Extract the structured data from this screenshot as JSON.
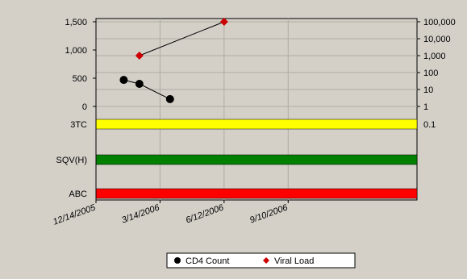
{
  "chart_data": {
    "type": "line",
    "title": "",
    "x_axis": {
      "type": "date",
      "min": "2005-12-14",
      "max": "2007-03-10",
      "tick_values": [
        "2005-12-14",
        "2006-03-14",
        "2006-06-12",
        "2006-09-10"
      ],
      "tick_labels": [
        "12/14/2005",
        "3/14/2006",
        "6/12/2006",
        "9/10/2006"
      ]
    },
    "left_axis": {
      "min": 0,
      "max": 1500,
      "ticks": [
        1500,
        1000,
        500,
        0
      ],
      "tick_labels": [
        "1,500",
        "1,000",
        "500",
        "0"
      ]
    },
    "right_axis": {
      "scale": "log",
      "min": 1,
      "max": 100000,
      "ticks": [
        100000,
        10000,
        1000,
        100,
        10,
        1
      ],
      "tick_labels": [
        "100,000",
        "10,000",
        "1,000",
        "100",
        "10",
        "1"
      ],
      "extra_label": "0.1"
    },
    "series": [
      {
        "name": "CD4 Count",
        "axis": "left",
        "color": "#000000",
        "marker": "circle",
        "points": [
          {
            "x": "2006-01-22",
            "y": 470
          },
          {
            "x": "2006-02-13",
            "y": 400
          },
          {
            "x": "2006-03-28",
            "y": 130
          }
        ]
      },
      {
        "name": "Viral Load",
        "axis": "right",
        "color": "#cc0000",
        "marker": "diamond",
        "points": [
          {
            "x": "2006-02-13",
            "y": 1000
          },
          {
            "x": "2006-06-12",
            "y": 100000
          }
        ]
      }
    ],
    "drug_bands": [
      {
        "label": "3TC",
        "color": "#ffff00"
      },
      {
        "label": "SQV(H)",
        "color": "#008000"
      },
      {
        "label": "ABC",
        "color": "#ff0000"
      }
    ],
    "grid": true,
    "legend_position": "bottom-center"
  }
}
